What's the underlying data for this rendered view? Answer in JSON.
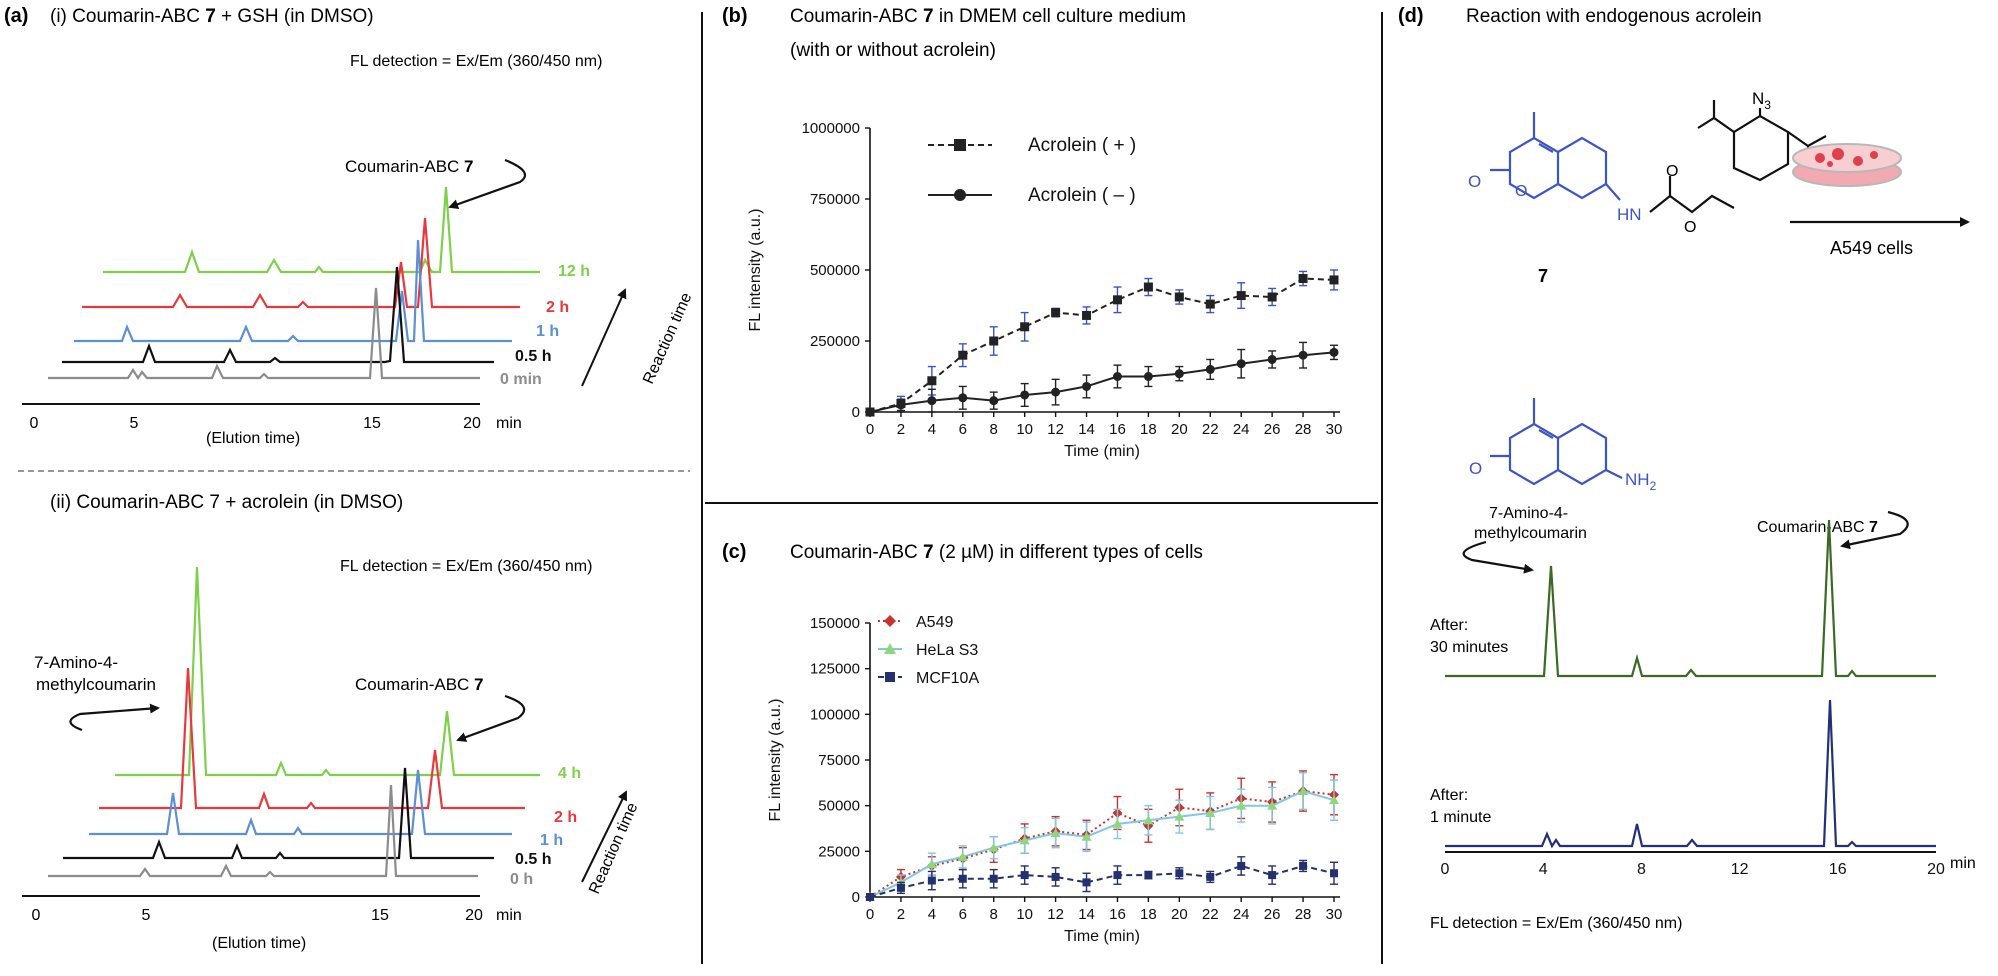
{
  "figure": {
    "panel_a": {
      "letter": "(a)",
      "sub_i": {
        "title": "(i) Coumarin-ABC",
        "compound": "7",
        "title_suffix": " + GSH (in DMSO)",
        "detection": "FL detection = Ex/Em (360/450 nm)",
        "peak_label": "Coumarin-ABC",
        "peak_label_compound": "7",
        "traces": [
          {
            "label": "12 h",
            "color": "#7ed04a"
          },
          {
            "label": "2 h",
            "color": "#e8383d"
          },
          {
            "label": "1 h",
            "color": "#5b8fd6"
          },
          {
            "label": "0.5 h",
            "color": "#111111"
          },
          {
            "label": "0 min",
            "color": "#8c8c8c"
          }
        ],
        "x_ticks": [
          "0",
          "5",
          "15",
          "20"
        ],
        "x_unit": "min",
        "x_label": "(Elution time)",
        "arrow_label": "Reaction time"
      },
      "sub_ii": {
        "title": "(ii) Coumarin-ABC 7 + acrolein (in DMSO)",
        "detection": "FL detection = Ex/Em (360/450 nm)",
        "left_label_1": "7-Amino-4-",
        "left_label_2": "methylcoumarin",
        "peak_label": "Coumarin-ABC",
        "peak_label_compound": "7",
        "traces": [
          {
            "label": "4 h",
            "color": "#7ed04a"
          },
          {
            "label": "2 h",
            "color": "#e8383d"
          },
          {
            "label": "1 h",
            "color": "#5b8fd6"
          },
          {
            "label": "0.5 h",
            "color": "#111111"
          },
          {
            "label": "0 h",
            "color": "#8c8c8c"
          }
        ],
        "x_ticks": [
          "0",
          "5",
          "15",
          "20"
        ],
        "x_unit": "min",
        "x_label": "(Elution time)",
        "arrow_label": "Reaction time"
      }
    },
    "panel_b": {
      "letter": "(b)",
      "title_1": "Coumarin-ABC",
      "title_compound": "7",
      "title_1_suffix": " in DMEM cell culture medium",
      "title_2": "(with or without acrolein)"
    },
    "panel_c": {
      "letter": "(c)",
      "title": "Coumarin-ABC",
      "title_compound": "7",
      "title_suffix": " (2 µM) in different types of cells"
    },
    "panel_d": {
      "letter": "(d)",
      "title": "Reaction with endogenous acrolein",
      "compound_number": "7",
      "cells_label": "A549 cells",
      "n3": "N",
      "n3_sub": "3",
      "nh_label": "HN",
      "o_label": "O",
      "nh2_label": "NH",
      "nh2_sub": "2",
      "amc_label_1": "7-Amino-4-",
      "amc_label_2": "methylcoumarin",
      "abc_label": "Coumarin-ABC",
      "abc_compound": "7",
      "trace_1_label_1": "After:",
      "trace_1_label_2": "30 minutes",
      "trace_2_label_1": "After:",
      "trace_2_label_2": "1 minute",
      "x_ticks": [
        "0",
        "4",
        "8",
        "12",
        "16",
        "20"
      ],
      "x_unit": "min",
      "detection": "FL detection = Ex/Em (360/450 nm)",
      "colors": {
        "trace_30min": "#3a6b24",
        "trace_1min": "#22307a",
        "structure": "#3d55c4"
      }
    }
  },
  "chart_data": [
    {
      "type": "line",
      "panel": "b",
      "xlabel": "Time (min)",
      "ylabel": "FL intensity (a.u.)",
      "xlim": [
        0,
        30
      ],
      "ylim": [
        0,
        1000000
      ],
      "x": [
        0,
        2,
        4,
        6,
        8,
        10,
        12,
        14,
        16,
        18,
        20,
        22,
        24,
        26,
        28,
        30
      ],
      "x_ticks": [
        "0",
        "2",
        "4",
        "6",
        "8",
        "10",
        "12",
        "14",
        "16",
        "18",
        "20",
        "22",
        "24",
        "26",
        "28",
        "30"
      ],
      "y_ticks": [
        "0",
        "250000",
        "500000",
        "750000",
        "1000000"
      ],
      "legend_position": "top-left",
      "series": [
        {
          "name": "Acrolein ( + )",
          "color": "#222222",
          "dashed": true,
          "marker": "square",
          "values": [
            0,
            30000,
            110000,
            200000,
            250000,
            300000,
            350000,
            340000,
            395000,
            440000,
            405000,
            380000,
            410000,
            405000,
            470000,
            465000
          ],
          "errors": [
            10000,
            25000,
            50000,
            40000,
            50000,
            50000,
            15000,
            30000,
            45000,
            30000,
            25000,
            30000,
            45000,
            30000,
            25000,
            35000
          ]
        },
        {
          "name": "Acrolein ( – )",
          "color": "#222222",
          "dashed": false,
          "marker": "circle",
          "values": [
            0,
            25000,
            40000,
            50000,
            40000,
            60000,
            70000,
            90000,
            125000,
            125000,
            135000,
            150000,
            170000,
            185000,
            200000,
            210000
          ],
          "errors": [
            10000,
            20000,
            40000,
            40000,
            30000,
            40000,
            45000,
            40000,
            40000,
            35000,
            25000,
            35000,
            50000,
            30000,
            45000,
            25000
          ]
        }
      ]
    },
    {
      "type": "line",
      "panel": "c",
      "xlabel": "Time (min)",
      "ylabel": "FL intensity (a.u.)",
      "xlim": [
        0,
        30
      ],
      "ylim": [
        0,
        150000
      ],
      "x": [
        0,
        2,
        4,
        6,
        8,
        10,
        12,
        14,
        16,
        18,
        20,
        22,
        24,
        26,
        28,
        30
      ],
      "x_ticks": [
        "0",
        "2",
        "4",
        "6",
        "8",
        "10",
        "12",
        "14",
        "16",
        "18",
        "20",
        "22",
        "24",
        "26",
        "28",
        "30"
      ],
      "y_ticks": [
        "0",
        "25000",
        "50000",
        "75000",
        "100000",
        "125000",
        "150000"
      ],
      "legend_position": "top-left",
      "series": [
        {
          "name": "A549",
          "color": "#c8342c",
          "dashed": "dotted",
          "marker": "diamond",
          "values": [
            0,
            11000,
            17000,
            21000,
            26000,
            32000,
            36000,
            34000,
            46000,
            39000,
            49000,
            47000,
            54000,
            52000,
            58000,
            56000
          ],
          "errors": [
            1000,
            4000,
            5000,
            6000,
            7000,
            8000,
            8000,
            8000,
            9000,
            9000,
            10000,
            10000,
            11000,
            11000,
            11000,
            11000
          ]
        },
        {
          "name": "HeLa S3",
          "color": "#7ec8e8",
          "marker_color": "#8fd77a",
          "dashed": false,
          "marker": "triangle",
          "values": [
            0,
            8000,
            18000,
            22000,
            27000,
            31000,
            35000,
            33000,
            40000,
            42000,
            44000,
            46000,
            50000,
            50000,
            58000,
            53000
          ],
          "errors": [
            1000,
            4000,
            6000,
            6000,
            6000,
            7000,
            8000,
            8000,
            8000,
            8000,
            9000,
            9000,
            9000,
            10000,
            10000,
            11000
          ]
        },
        {
          "name": "MCF10A",
          "color": "#23316e",
          "dashed": true,
          "marker": "square",
          "values": [
            0,
            5000,
            9000,
            10000,
            10000,
            12000,
            11000,
            8000,
            12000,
            12000,
            13000,
            11000,
            17000,
            12000,
            17000,
            13000
          ],
          "errors": [
            1000,
            3000,
            5000,
            5000,
            5000,
            5000,
            5000,
            5000,
            5000,
            2000,
            3000,
            3000,
            5000,
            5000,
            3000,
            6000
          ]
        }
      ]
    }
  ]
}
